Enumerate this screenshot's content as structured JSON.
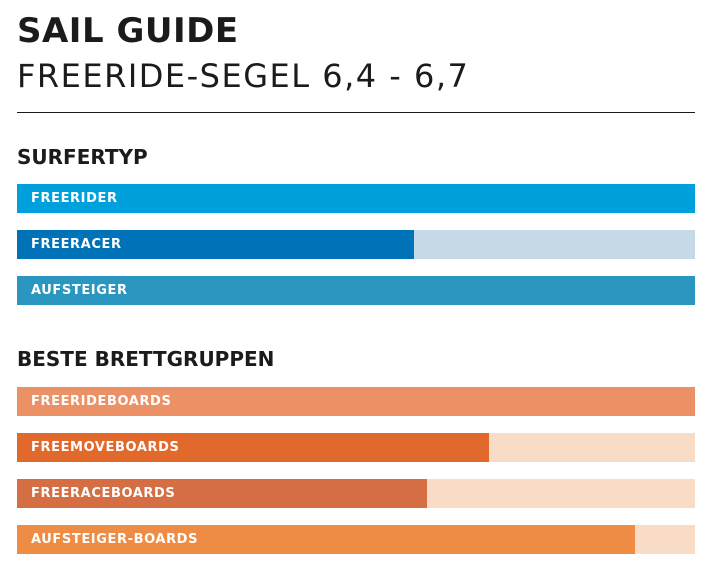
{
  "header": {
    "title": "SAIL GUIDE",
    "subtitle": "FREERIDE-SEGEL 6,4 - 6,7"
  },
  "chart_data": [
    {
      "type": "bar",
      "orientation": "horizontal",
      "title": "SURFERTYP",
      "categories": [
        "FREERIDER",
        "FREERACER",
        "AUFSTEIGER"
      ],
      "values": [
        100,
        58.5,
        100
      ],
      "xlim": [
        0,
        100
      ],
      "fill_colors": [
        "#00a0dc",
        "#0073b8",
        "#2b97c1"
      ],
      "track_color": "#c5d9e6",
      "grid": false
    },
    {
      "type": "bar",
      "orientation": "horizontal",
      "title": "BESTE BRETTGRUPPEN",
      "categories": [
        "FREERIDEBOARDS",
        "FREEMOVEBOARDS",
        "FREERACEBOARDS",
        "AUFSTEIGER-BOARDS"
      ],
      "values": [
        100,
        69.6,
        60.5,
        91.2
      ],
      "xlim": [
        0,
        100
      ],
      "fill_colors": [
        "#ec9165",
        "#e1692c",
        "#d56e43",
        "#ee8c45"
      ],
      "track_color": "#f9dcc5",
      "grid": false
    }
  ]
}
